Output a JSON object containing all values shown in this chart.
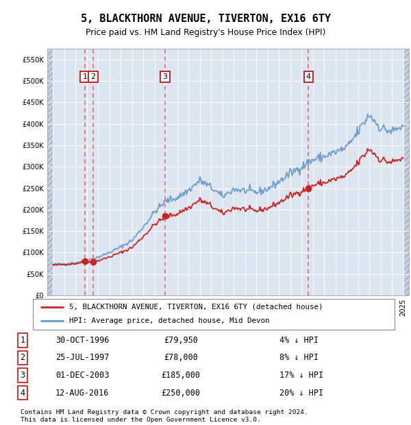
{
  "title": "5, BLACKTHORN AVENUE, TIVERTON, EX16 6TY",
  "subtitle": "Price paid vs. HM Land Registry's House Price Index (HPI)",
  "legend_line1": "5, BLACKTHORN AVENUE, TIVERTON, EX16 6TY (detached house)",
  "legend_line2": "HPI: Average price, detached house, Mid Devon",
  "footer1": "Contains HM Land Registry data © Crown copyright and database right 2024.",
  "footer2": "This data is licensed under the Open Government Licence v3.0.",
  "sales": [
    {
      "num": 1,
      "date_label": "30-OCT-1996",
      "price": 79950,
      "x_year": 1996.83,
      "hpi_pct": "4% ↓ HPI"
    },
    {
      "num": 2,
      "date_label": "25-JUL-1997",
      "price": 78000,
      "x_year": 1997.56,
      "hpi_pct": "8% ↓ HPI"
    },
    {
      "num": 3,
      "date_label": "01-DEC-2003",
      "price": 185000,
      "x_year": 2003.92,
      "hpi_pct": "17% ↓ HPI"
    },
    {
      "num": 4,
      "date_label": "12-AUG-2016",
      "price": 250000,
      "x_year": 2016.62,
      "hpi_pct": "20% ↓ HPI"
    }
  ],
  "hpi_color": "#6699cc",
  "sale_color": "#cc2222",
  "vline_color": "#ee4444",
  "background_chart": "#dde6f0",
  "hatch_color": "#c5cfe0",
  "ylim": [
    0,
    575000
  ],
  "xlim": [
    1993.5,
    2025.5
  ],
  "yticks": [
    0,
    50000,
    100000,
    150000,
    200000,
    250000,
    300000,
    350000,
    400000,
    450000,
    500000,
    550000
  ],
  "xticks": [
    1994,
    1995,
    1996,
    1997,
    1998,
    1999,
    2000,
    2001,
    2002,
    2003,
    2004,
    2005,
    2006,
    2007,
    2008,
    2009,
    2010,
    2011,
    2012,
    2013,
    2014,
    2015,
    2016,
    2017,
    2018,
    2019,
    2020,
    2021,
    2022,
    2023,
    2024,
    2025
  ]
}
